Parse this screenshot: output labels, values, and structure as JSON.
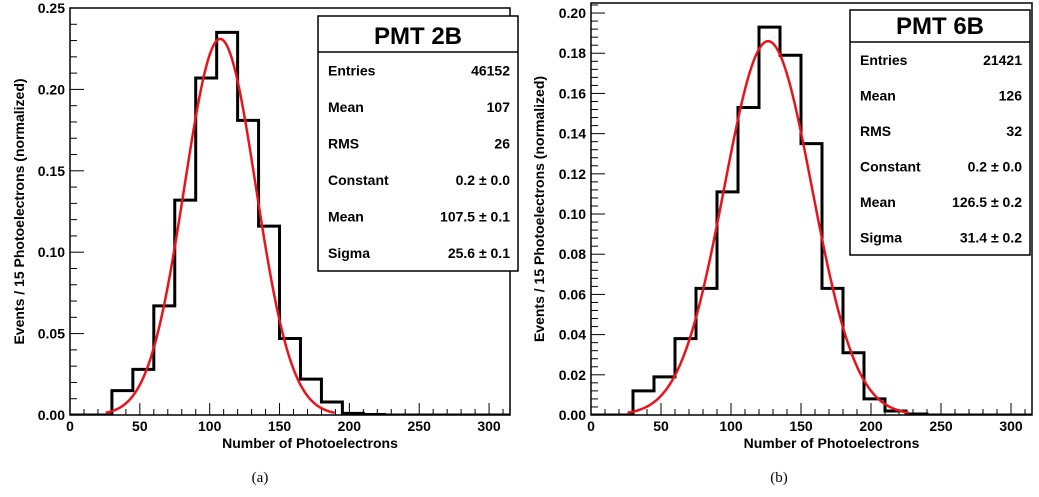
{
  "chart_data": [
    {
      "type": "histogram",
      "panel": "(a)",
      "title": "",
      "xlabel": "Number of Photoelectrons",
      "ylabel": "Events / 15 Photoelectrons (normalized)",
      "xlim": [
        0,
        315
      ],
      "ylim": [
        0,
        0.25
      ],
      "xticks": [
        0,
        50,
        100,
        150,
        200,
        250,
        300
      ],
      "xtick_labels": [
        "0",
        "50",
        "100",
        "150",
        "200",
        "250",
        "300"
      ],
      "yticks": [
        0,
        0.05,
        0.1,
        0.15,
        0.2,
        0.25
      ],
      "ytick_labels": [
        "0.00",
        "0.05",
        "0.10",
        "0.15",
        "0.20",
        "0.25"
      ],
      "bin_width": 15,
      "bin_edges": [
        0,
        15,
        30,
        45,
        60,
        75,
        90,
        105,
        120,
        135,
        150,
        165,
        180,
        195,
        210,
        225,
        240,
        255,
        270,
        285,
        300,
        315
      ],
      "values": [
        0,
        0,
        0.015,
        0.028,
        0.067,
        0.132,
        0.207,
        0.235,
        0.181,
        0.116,
        0.047,
        0.022,
        0.008,
        0.001,
        0.0003,
        0,
        0,
        0,
        0,
        0,
        0
      ],
      "fit": {
        "function": "gaussian",
        "constant": 0.231,
        "mean": 107.5,
        "sigma": 25.6,
        "color": "#e8141b"
      },
      "histogram_color": "#000000",
      "stats": {
        "title": "PMT 2B",
        "rows": [
          {
            "label": "Entries",
            "value": "46152"
          },
          {
            "label": "Mean",
            "value": "107"
          },
          {
            "label": "RMS",
            "value": "26"
          },
          {
            "label": "Constant",
            "value": "0.2 ± 0.0"
          },
          {
            "label": "Mean",
            "value": "107.5 ± 0.1"
          },
          {
            "label": "Sigma",
            "value": "25.6 ± 0.1"
          }
        ]
      }
    },
    {
      "type": "histogram",
      "panel": "(b)",
      "title": "",
      "xlabel": "Number of Photoelectrons",
      "ylabel": "Events / 15 Photoelectrons (normalized)",
      "xlim": [
        0,
        315
      ],
      "ylim": [
        0,
        0.205
      ],
      "xticks": [
        0,
        50,
        100,
        150,
        200,
        250,
        300
      ],
      "xtick_labels": [
        "0",
        "50",
        "100",
        "150",
        "200",
        "250",
        "300"
      ],
      "yticks": [
        0,
        0.02,
        0.04,
        0.06,
        0.08,
        0.1,
        0.12,
        0.14,
        0.16,
        0.18,
        0.2
      ],
      "ytick_labels": [
        "0.00",
        "0.02",
        "0.04",
        "0.06",
        "0.08",
        "0.10",
        "0.12",
        "0.14",
        "0.16",
        "0.18",
        "0.20"
      ],
      "bin_width": 15,
      "bin_edges": [
        0,
        15,
        30,
        45,
        60,
        75,
        90,
        105,
        120,
        135,
        150,
        165,
        180,
        195,
        210,
        225,
        240,
        255,
        270,
        285,
        300,
        315
      ],
      "values": [
        0,
        0,
        0.012,
        0.019,
        0.038,
        0.063,
        0.111,
        0.153,
        0.193,
        0.179,
        0.135,
        0.063,
        0.031,
        0.008,
        0.002,
        0.0005,
        0,
        0,
        0,
        0,
        0
      ],
      "fit": {
        "function": "gaussian",
        "constant": 0.186,
        "mean": 126.5,
        "sigma": 31.4,
        "color": "#e8141b"
      },
      "histogram_color": "#000000",
      "stats": {
        "title": "PMT 6B",
        "rows": [
          {
            "label": "Entries",
            "value": "21421"
          },
          {
            "label": "Mean",
            "value": "126"
          },
          {
            "label": "RMS",
            "value": "32"
          },
          {
            "label": "Constant",
            "value": "0.2 ± 0.0"
          },
          {
            "label": "Mean",
            "value": "126.5 ± 0.2"
          },
          {
            "label": "Sigma",
            "value": "31.4 ± 0.2"
          }
        ]
      }
    }
  ]
}
